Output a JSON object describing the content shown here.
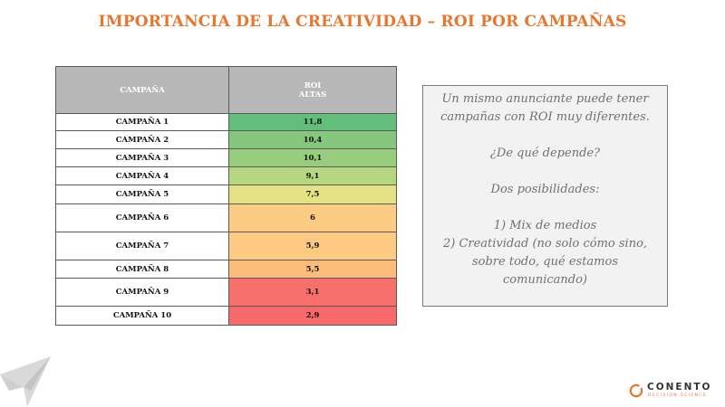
{
  "title": "IMPORTANCIA DE LA CREATIVIDAD – ROI POR CAMPAÑAS",
  "table": {
    "header_campaign": "CAMPAÑA",
    "header_roi_line1": "ROI",
    "header_roi_line2": "ALTAS",
    "rows": [
      {
        "campaign": "CAMPAÑA 1",
        "roi": "11,8",
        "color": "#63be7b"
      },
      {
        "campaign": "CAMPAÑA 2",
        "roi": "10,4",
        "color": "#85c77d"
      },
      {
        "campaign": "CAMPAÑA 3",
        "roi": "10,1",
        "color": "#99cd7e"
      },
      {
        "campaign": "CAMPAÑA 4",
        "roi": "9,1",
        "color": "#b5d77f"
      },
      {
        "campaign": "CAMPAÑA 5",
        "roi": "7,5",
        "color": "#e3e383"
      },
      {
        "campaign": "CAMPAÑA 6",
        "roi": "6",
        "color": "#fdcc84"
      },
      {
        "campaign": "CAMPAÑA 7",
        "roi": "5,9",
        "color": "#fdc983"
      },
      {
        "campaign": "CAMPAÑA 8",
        "roi": "5,5",
        "color": "#fcbc7b"
      },
      {
        "campaign": "CAMPAÑA 9",
        "roi": "3,1",
        "color": "#f8706c"
      },
      {
        "campaign": "CAMPAÑA 10",
        "roi": "2,9",
        "color": "#f8696b"
      }
    ]
  },
  "note": {
    "intro": "Un mismo anunciante puede tener campañas con ROI muy diferentes.",
    "question": "¿De qué depende?",
    "possibilities": "Dos posibilidades:",
    "option1": "1) Mix de medios",
    "option2": "2) Creatividad (no solo cómo sino, sobre todo, qué estamos comunicando)"
  },
  "brand": {
    "name": "CONENTO",
    "tagline": "DECISION SCIENCE",
    "accent_color": "#e8762c"
  }
}
